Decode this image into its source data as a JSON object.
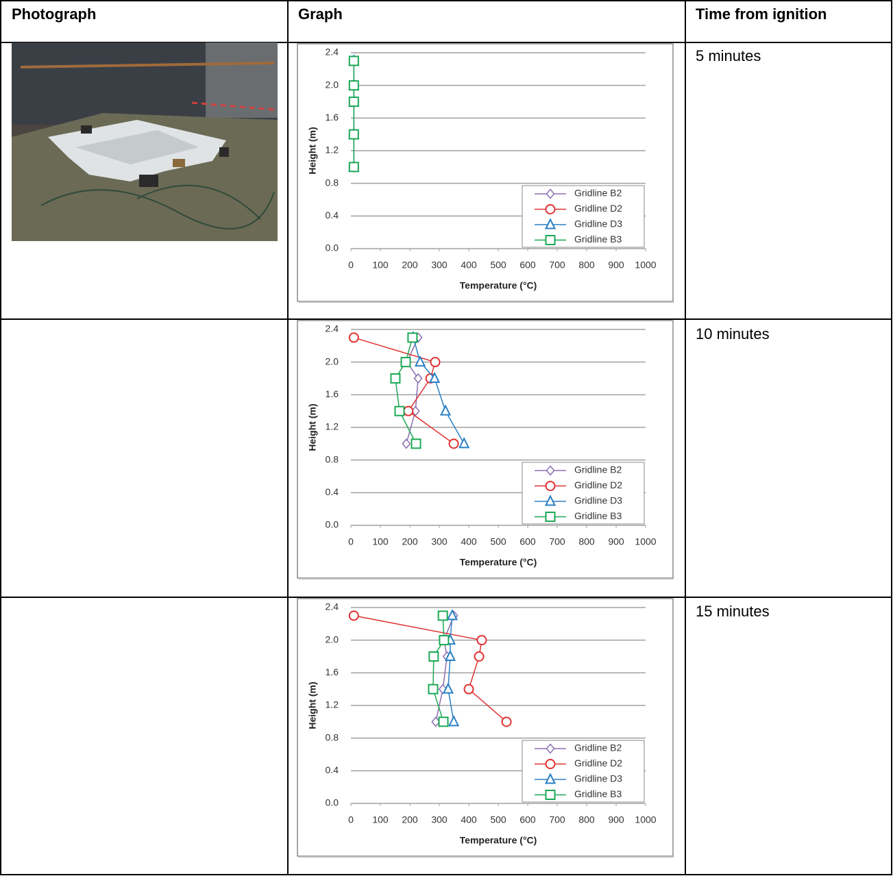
{
  "table": {
    "headers": [
      "Photograph",
      "Graph",
      "Time from ignition"
    ],
    "times": [
      "5 minutes",
      "10 minutes",
      "15 minutes"
    ]
  },
  "chart_data": [
    {
      "type": "line",
      "xlabel": "Temperature (°C)",
      "ylabel": "Height (m)",
      "xlim": [
        0,
        1000
      ],
      "xticks": [
        0,
        100,
        200,
        300,
        400,
        500,
        600,
        700,
        800,
        900,
        1000
      ],
      "ylim": [
        0,
        2.4
      ],
      "yticks": [
        {
          "value": 0,
          "label": "0.0"
        },
        0.4,
        0.8,
        1.2,
        1.6,
        {
          "value": 2,
          "label": "2.0"
        },
        2.4
      ],
      "grid": true,
      "legend": "lower right",
      "series": [
        {
          "name": "Gridline B2",
          "color": "#8a6fb0",
          "marker": "diamond",
          "x": [
            10,
            10,
            10,
            10,
            10
          ],
          "values": [
            1.0,
            1.4,
            1.8,
            2.0,
            2.3
          ]
        },
        {
          "name": "Gridline D2",
          "color": "#e03030",
          "marker": "circle",
          "x": [
            10,
            10,
            10,
            10,
            10
          ],
          "values": [
            1.0,
            1.4,
            1.8,
            2.0,
            2.3
          ]
        },
        {
          "name": "Gridline D3",
          "color": "#2a7fc4",
          "marker": "triangle",
          "x": [
            10,
            10,
            10,
            10,
            10
          ],
          "values": [
            1.0,
            1.4,
            1.8,
            2.0,
            2.3
          ]
        },
        {
          "name": "Gridline B3",
          "color": "#1aa855",
          "marker": "square",
          "x": [
            10,
            10,
            10,
            10,
            10
          ],
          "values": [
            1.0,
            1.4,
            1.8,
            2.0,
            2.3
          ]
        }
      ]
    },
    {
      "type": "line",
      "xlabel": "Temperature (°C)",
      "ylabel": "Height (m)",
      "xlim": [
        0,
        1000
      ],
      "xticks": [
        0,
        100,
        200,
        300,
        400,
        500,
        600,
        700,
        800,
        900,
        1000
      ],
      "ylim": [
        0,
        2.4
      ],
      "yticks": [
        {
          "value": 0,
          "label": "0.0"
        },
        0.4,
        0.8,
        1.2,
        1.6,
        {
          "value": 2,
          "label": "2.0"
        },
        2.4
      ],
      "grid": true,
      "legend": "lower right",
      "series": [
        {
          "name": "Gridline B2",
          "color": "#8a6fb0",
          "marker": "diamond",
          "x": [
            188,
            219,
            228,
            190,
            228
          ],
          "values": [
            1.0,
            1.4,
            1.8,
            2.0,
            2.3
          ]
        },
        {
          "name": "Gridline D2",
          "color": "#e03030",
          "marker": "circle",
          "x": [
            349,
            195,
            270,
            286,
            10
          ],
          "values": [
            1.0,
            1.4,
            1.8,
            2.0,
            2.3
          ]
        },
        {
          "name": "Gridline D3",
          "color": "#2a7fc4",
          "marker": "triangle",
          "x": [
            384,
            321,
            284,
            235,
            212
          ],
          "values": [
            1.0,
            1.4,
            1.8,
            2.0,
            2.3
          ]
        },
        {
          "name": "Gridline B3",
          "color": "#1aa855",
          "marker": "square",
          "x": [
            221,
            165,
            151,
            186,
            209
          ],
          "values": [
            1.0,
            1.4,
            1.8,
            2.0,
            2.3
          ]
        }
      ]
    },
    {
      "type": "line",
      "xlabel": "Temperature (°C)",
      "ylabel": "Height (m)",
      "xlim": [
        0,
        1000
      ],
      "xticks": [
        0,
        100,
        200,
        300,
        400,
        500,
        600,
        700,
        800,
        900,
        1000
      ],
      "ylim": [
        0,
        2.4
      ],
      "yticks": [
        {
          "value": 0,
          "label": "0.0"
        },
        0.4,
        0.8,
        1.2,
        1.6,
        {
          "value": 2,
          "label": "2.0"
        },
        2.4
      ],
      "grid": true,
      "legend": "lower right",
      "series": [
        {
          "name": "Gridline B2",
          "color": "#8a6fb0",
          "marker": "diamond",
          "x": [
            288,
            312,
            326,
            316,
            349
          ],
          "values": [
            1.0,
            1.4,
            1.8,
            2.0,
            2.3
          ]
        },
        {
          "name": "Gridline D2",
          "color": "#e03030",
          "marker": "circle",
          "x": [
            528,
            400,
            435,
            444,
            10
          ],
          "values": [
            1.0,
            1.4,
            1.8,
            2.0,
            2.3
          ]
        },
        {
          "name": "Gridline D3",
          "color": "#2a7fc4",
          "marker": "triangle",
          "x": [
            349,
            330,
            337,
            337,
            344
          ],
          "values": [
            1.0,
            1.4,
            1.8,
            2.0,
            2.3
          ]
        },
        {
          "name": "Gridline B3",
          "color": "#1aa855",
          "marker": "square",
          "x": [
            314,
            279,
            281,
            316,
            312
          ],
          "values": [
            1.0,
            1.4,
            1.8,
            2.0,
            2.3
          ]
        }
      ]
    }
  ]
}
